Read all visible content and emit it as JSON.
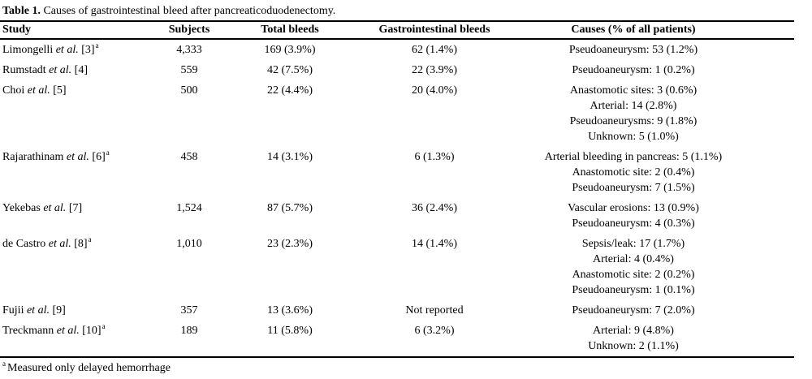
{
  "title": {
    "label": "Table 1.",
    "text": " Causes of gastrointestinal bleed after pancreaticoduodenectomy."
  },
  "table": {
    "headers": [
      "Study",
      "Subjects",
      "Total bleeds",
      "Gastrointestinal bleeds",
      "Causes (% of all patients)"
    ],
    "rows": [
      {
        "study": {
          "name": "Limongelli",
          "etal": "et al.",
          "ref": "[3]",
          "note": "a"
        },
        "subjects": "4,333",
        "total_bleeds": "169 (3.9%)",
        "gi_bleeds": "62 (1.4%)",
        "causes": [
          "Pseudoaneurysm: 53 (1.2%)"
        ]
      },
      {
        "study": {
          "name": "Rumstadt",
          "etal": "et al.",
          "ref": "[4]",
          "note": ""
        },
        "subjects": "559",
        "total_bleeds": "42 (7.5%)",
        "gi_bleeds": "22 (3.9%)",
        "causes": [
          "Pseudoaneurysm: 1 (0.2%)"
        ]
      },
      {
        "study": {
          "name": "Choi",
          "etal": "et al.",
          "ref": "[5]",
          "note": ""
        },
        "subjects": "500",
        "total_bleeds": "22 (4.4%)",
        "gi_bleeds": "20 (4.0%)",
        "causes": [
          "Anastomotic sites: 3 (0.6%)",
          "Arterial: 14 (2.8%)",
          "Pseudoaneurysms: 9 (1.8%)",
          "Unknown: 5 (1.0%)"
        ]
      },
      {
        "study": {
          "name": "Rajarathinam",
          "etal": "et al.",
          "ref": "[6]",
          "note": "a"
        },
        "subjects": "458",
        "total_bleeds": "14 (3.1%)",
        "gi_bleeds": "6 (1.3%)",
        "causes": [
          "Arterial bleeding in pancreas: 5 (1.1%)",
          "Anastomotic site: 2 (0.4%)",
          "Pseudoaneurysm: 7 (1.5%)"
        ]
      },
      {
        "study": {
          "name": "Yekebas",
          "etal": "et al.",
          "ref": "[7]",
          "note": ""
        },
        "subjects": "1,524",
        "total_bleeds": "87 (5.7%)",
        "gi_bleeds": "36 (2.4%)",
        "causes": [
          "Vascular erosions: 13 (0.9%)",
          "Pseudoaneurysm: 4 (0.3%)"
        ]
      },
      {
        "study": {
          "name": "de Castro",
          "etal": "et al.",
          "ref": "[8]",
          "note": "a"
        },
        "subjects": "1,010",
        "total_bleeds": "23 (2.3%)",
        "gi_bleeds": "14 (1.4%)",
        "causes": [
          "Sepsis/leak: 17 (1.7%)",
          "Arterial: 4 (0.4%)",
          "Anastomotic site: 2 (0.2%)",
          "Pseudoaneurysm: 1 (0.1%)"
        ]
      },
      {
        "study": {
          "name": "Fujii",
          "etal": "et al.",
          "ref": "[9]",
          "note": ""
        },
        "subjects": "357",
        "total_bleeds": "13 (3.6%)",
        "gi_bleeds": "Not reported",
        "causes": [
          "Pseudoaneurysm: 7 (2.0%)"
        ]
      },
      {
        "study": {
          "name": "Treckmann",
          "etal": "et al.",
          "ref": "[10]",
          "note": "a"
        },
        "subjects": "189",
        "total_bleeds": "11 (5.8%)",
        "gi_bleeds": "6 (3.2%)",
        "causes": [
          "Arterial: 9 (4.8%)",
          "Unknown: 2 (1.1%)"
        ]
      }
    ]
  },
  "footnote": {
    "marker": "a",
    "text": "Measured only delayed hemorrhage"
  },
  "colors": {
    "text": "#000000",
    "background": "#ffffff",
    "rule": "#000000"
  }
}
